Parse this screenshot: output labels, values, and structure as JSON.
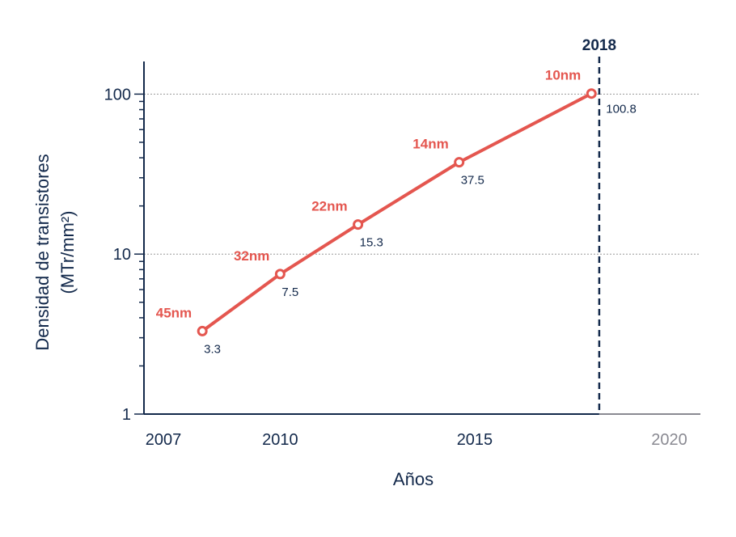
{
  "chart_data": {
    "type": "line",
    "xlabel": "Años",
    "ylabel_line1": "Densidad de transistores",
    "ylabel_line2": "(MTr/mm²)",
    "yscale": "log",
    "ylim": [
      1,
      160
    ],
    "xlim": [
      2006.5,
      2020.8
    ],
    "yticks": [
      {
        "value": 1,
        "label": "1"
      },
      {
        "value": 10,
        "label": "10"
      },
      {
        "value": 100,
        "label": "100"
      }
    ],
    "xticks": [
      {
        "value": 2007,
        "label": "2007",
        "muted": false
      },
      {
        "value": 2010,
        "label": "2010",
        "muted": false
      },
      {
        "value": 2015,
        "label": "2015",
        "muted": false
      },
      {
        "value": 2020,
        "label": "2020",
        "muted": true
      }
    ],
    "series": [
      {
        "points": [
          {
            "x": 2008.0,
            "y": 3.3,
            "label": "45nm",
            "value_label": "3.3"
          },
          {
            "x": 2010.0,
            "y": 7.5,
            "label": "32nm",
            "value_label": "7.5"
          },
          {
            "x": 2012.0,
            "y": 15.3,
            "label": "22nm",
            "value_label": "15.3"
          },
          {
            "x": 2014.6,
            "y": 37.5,
            "label": "14nm",
            "value_label": "37.5"
          },
          {
            "x": 2018.0,
            "y": 100.8,
            "label": "10nm",
            "value_label": "100.8"
          }
        ]
      }
    ],
    "reference_line": {
      "x": 2018.2,
      "label": "2018"
    },
    "gridlines_y": [
      10,
      100
    ],
    "colors": {
      "series": "#e4564f",
      "axis": "#13294b",
      "muted": "#8a8a92",
      "grid": "#9a9a9a"
    }
  }
}
